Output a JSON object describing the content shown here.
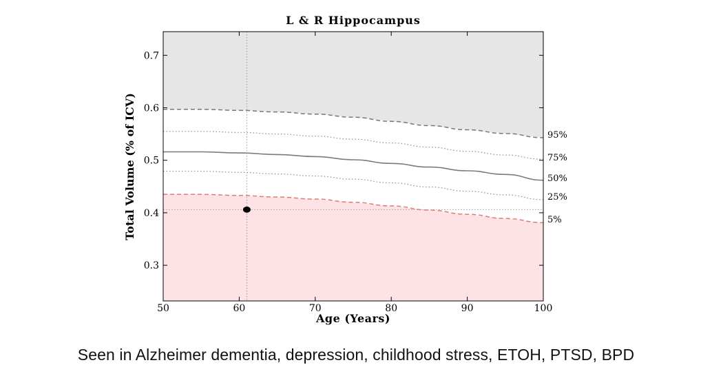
{
  "chart_data": {
    "type": "line",
    "title": "L & R Hippocampus",
    "xlabel": "Age (Years)",
    "ylabel": "Total Volume (% of ICV)",
    "xlim": [
      50,
      100
    ],
    "ylim": [
      0.232,
      0.745
    ],
    "xticks": [
      50,
      60,
      70,
      80,
      90,
      100
    ],
    "yticks": [
      0.3,
      0.4,
      0.5,
      0.6,
      0.7
    ],
    "ytick_labels": [
      "0.3",
      "0.4",
      "0.5",
      "0.6",
      "0.7"
    ],
    "x": [
      50,
      55,
      60,
      65,
      70,
      75,
      80,
      85,
      90,
      95,
      100
    ],
    "series": [
      {
        "name": "95%",
        "style": "dashed",
        "color": "#777777",
        "values": [
          0.597,
          0.597,
          0.595,
          0.592,
          0.588,
          0.582,
          0.574,
          0.566,
          0.558,
          0.551,
          0.543
        ]
      },
      {
        "name": "75%",
        "style": "dotted",
        "color": "#8a8a8a",
        "values": [
          0.555,
          0.555,
          0.553,
          0.55,
          0.546,
          0.54,
          0.533,
          0.525,
          0.517,
          0.51,
          0.502
        ]
      },
      {
        "name": "50%",
        "style": "solid",
        "color": "#7a7a7a",
        "values": [
          0.516,
          0.516,
          0.514,
          0.511,
          0.507,
          0.501,
          0.494,
          0.487,
          0.48,
          0.473,
          0.462
        ]
      },
      {
        "name": "25%",
        "style": "dotted",
        "color": "#8a8a8a",
        "values": [
          0.479,
          0.479,
          0.477,
          0.474,
          0.47,
          0.464,
          0.457,
          0.449,
          0.441,
          0.434,
          0.425
        ]
      },
      {
        "name": "5%",
        "style": "dashed",
        "color": "#e07a72",
        "values": [
          0.435,
          0.435,
          0.433,
          0.43,
          0.426,
          0.42,
          0.413,
          0.405,
          0.397,
          0.389,
          0.381
        ]
      }
    ],
    "regions": [
      {
        "name": "above-95th",
        "color": "#e6e6e6"
      },
      {
        "name": "below-5th",
        "color": "#fde3e6"
      }
    ],
    "patient_point": {
      "x": 61,
      "y": 0.406,
      "color": "#000000"
    }
  },
  "caption": "Seen in Alzheimer dementia, depression, childhood stress, ETOH, PTSD, BPD"
}
